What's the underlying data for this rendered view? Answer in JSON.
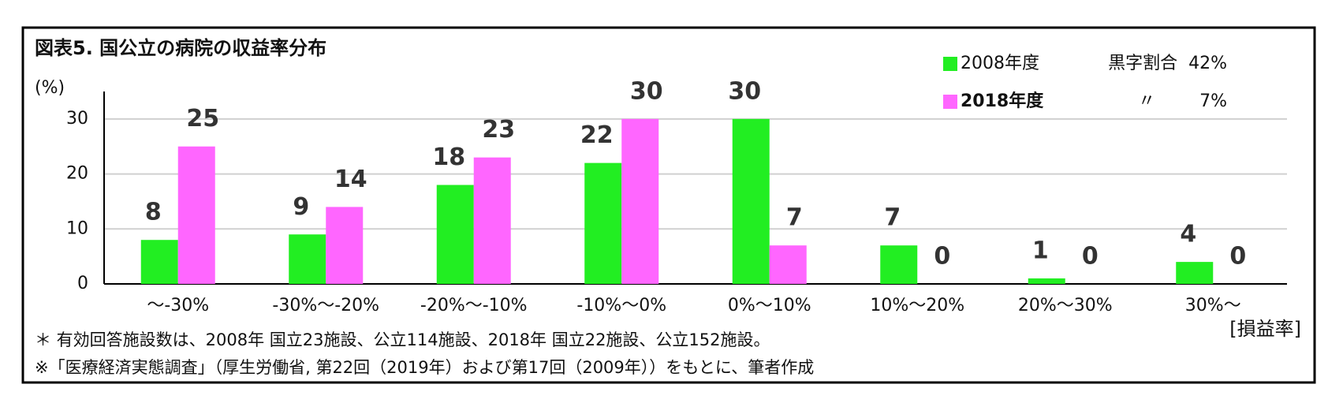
{
  "chart_data": {
    "type": "bar",
    "title": "図表5.  国公立の病院の収益率分布",
    "y_label": "(%)",
    "x_label": "[損益率]",
    "categories": [
      "～-30%",
      "-30%～-20%",
      "-20%～-10%",
      "-10%～0%",
      "0%～10%",
      "10%～20%",
      "20%～30%",
      "30%～"
    ],
    "series": [
      {
        "name": "2008年度",
        "note": "黒字割合  42%",
        "color": "#22ee22",
        "values": [
          8,
          9,
          18,
          22,
          30,
          7,
          1,
          4
        ]
      },
      {
        "name": "2018年度",
        "note": "〃        7%",
        "color": "#ff66ff",
        "values": [
          25,
          14,
          23,
          30,
          7,
          0,
          0,
          0
        ]
      }
    ],
    "ylim": [
      0,
      35
    ],
    "yticks": [
      0,
      10,
      20,
      30
    ],
    "grid": true,
    "footnotes": [
      "＊ 有効回答施設数は、2008年  国立23施設、公立114施設、2018年  国立22施設、公立152施設。",
      "※「医療経済実態調査」（厚生労働省, 第22回（2019年）および第17回（2009年））をもとに、筆者作成"
    ]
  }
}
